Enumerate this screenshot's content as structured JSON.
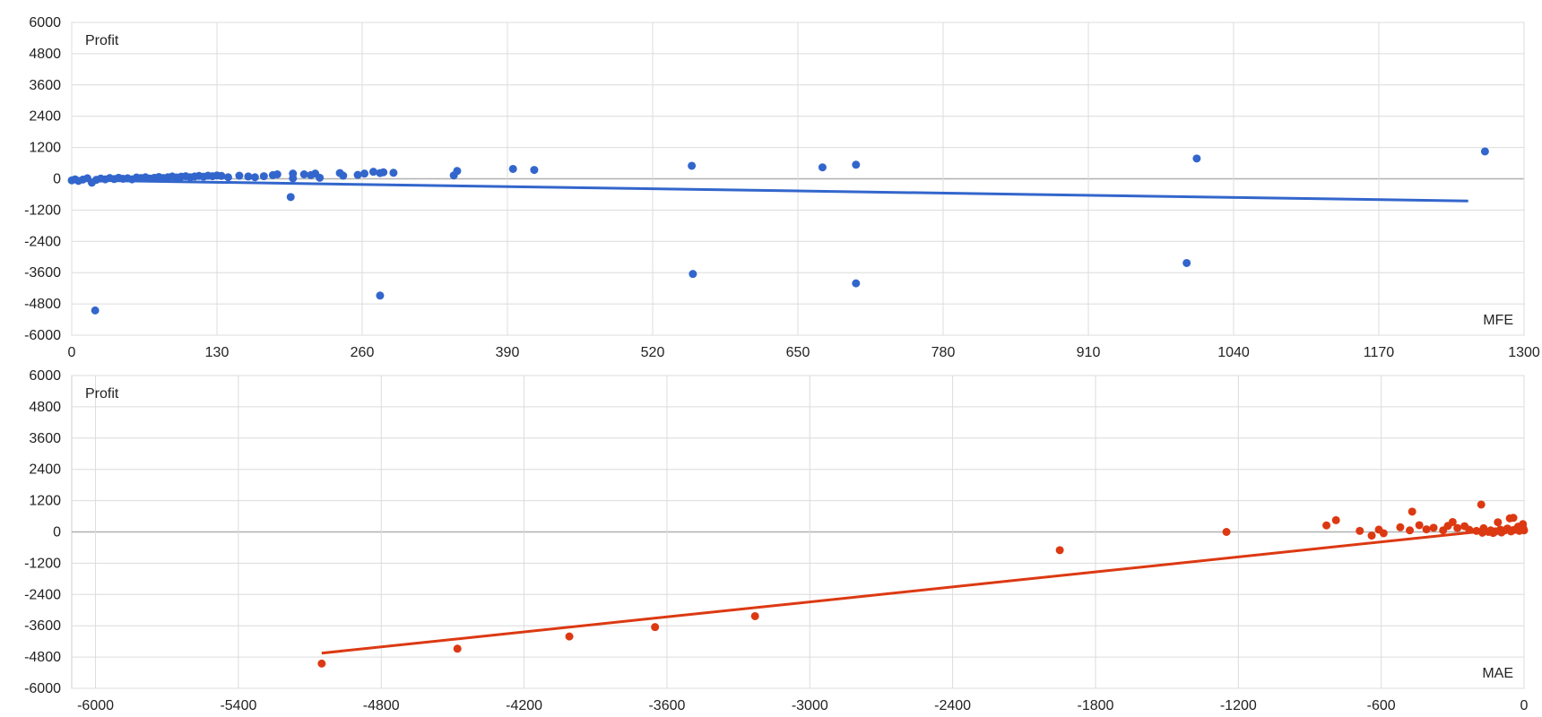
{
  "chart_data": [
    {
      "type": "scatter",
      "title": "",
      "ylabel": "Profit",
      "xlabel": "MFE",
      "xlim": [
        0,
        1300
      ],
      "ylim": [
        -6000,
        6000
      ],
      "x_ticks": [
        "0",
        "130",
        "260",
        "390",
        "520",
        "650",
        "780",
        "910",
        "1040",
        "1170",
        "1300"
      ],
      "y_ticks": [
        "6000",
        "4800",
        "3600",
        "2400",
        "1200",
        "0",
        "-1200",
        "-2400",
        "-3600",
        "-4800",
        "-6000"
      ],
      "grid": true,
      "color": "#3366CC",
      "trendline": {
        "x": [
          0,
          1250
        ],
        "y": [
          -50,
          -850
        ]
      },
      "points": [
        {
          "x": 0,
          "y": -60
        },
        {
          "x": 3,
          "y": -20
        },
        {
          "x": 6,
          "y": -80
        },
        {
          "x": 10,
          "y": -30
        },
        {
          "x": 14,
          "y": 20
        },
        {
          "x": 18,
          "y": -150
        },
        {
          "x": 22,
          "y": -40
        },
        {
          "x": 26,
          "y": 10
        },
        {
          "x": 30,
          "y": -20
        },
        {
          "x": 34,
          "y": 30
        },
        {
          "x": 38,
          "y": -10
        },
        {
          "x": 42,
          "y": 40
        },
        {
          "x": 46,
          "y": 0
        },
        {
          "x": 50,
          "y": 20
        },
        {
          "x": 54,
          "y": -20
        },
        {
          "x": 58,
          "y": 50
        },
        {
          "x": 62,
          "y": 30
        },
        {
          "x": 66,
          "y": 60
        },
        {
          "x": 70,
          "y": 10
        },
        {
          "x": 74,
          "y": 40
        },
        {
          "x": 78,
          "y": 70
        },
        {
          "x": 82,
          "y": 30
        },
        {
          "x": 86,
          "y": 60
        },
        {
          "x": 90,
          "y": 90
        },
        {
          "x": 94,
          "y": 50
        },
        {
          "x": 98,
          "y": 80
        },
        {
          "x": 102,
          "y": 100
        },
        {
          "x": 106,
          "y": 60
        },
        {
          "x": 110,
          "y": 90
        },
        {
          "x": 114,
          "y": 110
        },
        {
          "x": 118,
          "y": 80
        },
        {
          "x": 122,
          "y": 120
        },
        {
          "x": 126,
          "y": 100
        },
        {
          "x": 130,
          "y": 130
        },
        {
          "x": 134,
          "y": 110
        },
        {
          "x": 140,
          "y": 60
        },
        {
          "x": 150,
          "y": 120
        },
        {
          "x": 158,
          "y": 90
        },
        {
          "x": 164,
          "y": 60
        },
        {
          "x": 172,
          "y": 100
        },
        {
          "x": 180,
          "y": 140
        },
        {
          "x": 184,
          "y": 170
        },
        {
          "x": 196,
          "y": -700
        },
        {
          "x": 198,
          "y": 200
        },
        {
          "x": 198,
          "y": 20
        },
        {
          "x": 208,
          "y": 170
        },
        {
          "x": 214,
          "y": 140
        },
        {
          "x": 218,
          "y": 200
        },
        {
          "x": 222,
          "y": 40
        },
        {
          "x": 240,
          "y": 220
        },
        {
          "x": 243,
          "y": 120
        },
        {
          "x": 256,
          "y": 150
        },
        {
          "x": 262,
          "y": 200
        },
        {
          "x": 270,
          "y": 270
        },
        {
          "x": 276,
          "y": 220
        },
        {
          "x": 279,
          "y": 250
        },
        {
          "x": 288,
          "y": 230
        },
        {
          "x": 342,
          "y": 130
        },
        {
          "x": 345,
          "y": 300
        },
        {
          "x": 395,
          "y": 380
        },
        {
          "x": 414,
          "y": 340
        },
        {
          "x": 555,
          "y": 500
        },
        {
          "x": 672,
          "y": 440
        },
        {
          "x": 702,
          "y": 540
        },
        {
          "x": 1007,
          "y": 780
        },
        {
          "x": 1265,
          "y": 1050
        },
        {
          "x": 21,
          "y": -5050
        },
        {
          "x": 276,
          "y": -4480
        },
        {
          "x": 556,
          "y": -3650
        },
        {
          "x": 702,
          "y": -4010
        },
        {
          "x": 998,
          "y": -3230
        }
      ]
    },
    {
      "type": "scatter",
      "title": "",
      "ylabel": "Profit",
      "xlabel": "MAE",
      "xlim": [
        -6100,
        0
      ],
      "ylim": [
        -6000,
        6000
      ],
      "x_ticks": [
        "-6000",
        "-5400",
        "-4800",
        "-4200",
        "-3600",
        "-3000",
        "-2400",
        "-1800",
        "-1200",
        "-600",
        "0"
      ],
      "y_ticks": [
        "6000",
        "4800",
        "3600",
        "2400",
        "1200",
        "0",
        "-1200",
        "-2400",
        "-3600",
        "-4800",
        "-6000"
      ],
      "grid": true,
      "color": "#DC3912",
      "trendline": {
        "x": [
          -5050,
          -200
        ],
        "y": [
          -4650,
          0
        ]
      },
      "points": [
        {
          "x": -5050,
          "y": -5050
        },
        {
          "x": -4480,
          "y": -4480
        },
        {
          "x": -4010,
          "y": -4010
        },
        {
          "x": -3650,
          "y": -3650
        },
        {
          "x": -3230,
          "y": -3230
        },
        {
          "x": -1950,
          "y": -700
        },
        {
          "x": -1250,
          "y": 0
        },
        {
          "x": -830,
          "y": 250
        },
        {
          "x": -790,
          "y": 450
        },
        {
          "x": -690,
          "y": 40
        },
        {
          "x": -640,
          "y": -140
        },
        {
          "x": -610,
          "y": 90
        },
        {
          "x": -590,
          "y": -50
        },
        {
          "x": -520,
          "y": 180
        },
        {
          "x": -480,
          "y": 60
        },
        {
          "x": -470,
          "y": 780
        },
        {
          "x": -440,
          "y": 260
        },
        {
          "x": -410,
          "y": 100
        },
        {
          "x": -380,
          "y": 160
        },
        {
          "x": -340,
          "y": 60
        },
        {
          "x": -320,
          "y": 230
        },
        {
          "x": -300,
          "y": 380
        },
        {
          "x": -280,
          "y": 150
        },
        {
          "x": -250,
          "y": 220
        },
        {
          "x": -230,
          "y": 80
        },
        {
          "x": -200,
          "y": 40
        },
        {
          "x": -180,
          "y": 1050
        },
        {
          "x": -175,
          "y": -30
        },
        {
          "x": -170,
          "y": 140
        },
        {
          "x": -150,
          "y": 0
        },
        {
          "x": -140,
          "y": 60
        },
        {
          "x": -130,
          "y": -40
        },
        {
          "x": -120,
          "y": 20
        },
        {
          "x": -110,
          "y": 370
        },
        {
          "x": -100,
          "y": 90
        },
        {
          "x": -95,
          "y": -20
        },
        {
          "x": -90,
          "y": 30
        },
        {
          "x": -80,
          "y": 60
        },
        {
          "x": -70,
          "y": 130
        },
        {
          "x": -60,
          "y": 520
        },
        {
          "x": -55,
          "y": 20
        },
        {
          "x": -50,
          "y": 60
        },
        {
          "x": -45,
          "y": 540
        },
        {
          "x": -40,
          "y": 80
        },
        {
          "x": -30,
          "y": 110
        },
        {
          "x": -25,
          "y": 200
        },
        {
          "x": -20,
          "y": 40
        },
        {
          "x": -15,
          "y": 160
        },
        {
          "x": -10,
          "y": 90
        },
        {
          "x": -8,
          "y": 250
        },
        {
          "x": -5,
          "y": 300
        },
        {
          "x": -3,
          "y": 130
        },
        {
          "x": 0,
          "y": 60
        }
      ]
    }
  ]
}
